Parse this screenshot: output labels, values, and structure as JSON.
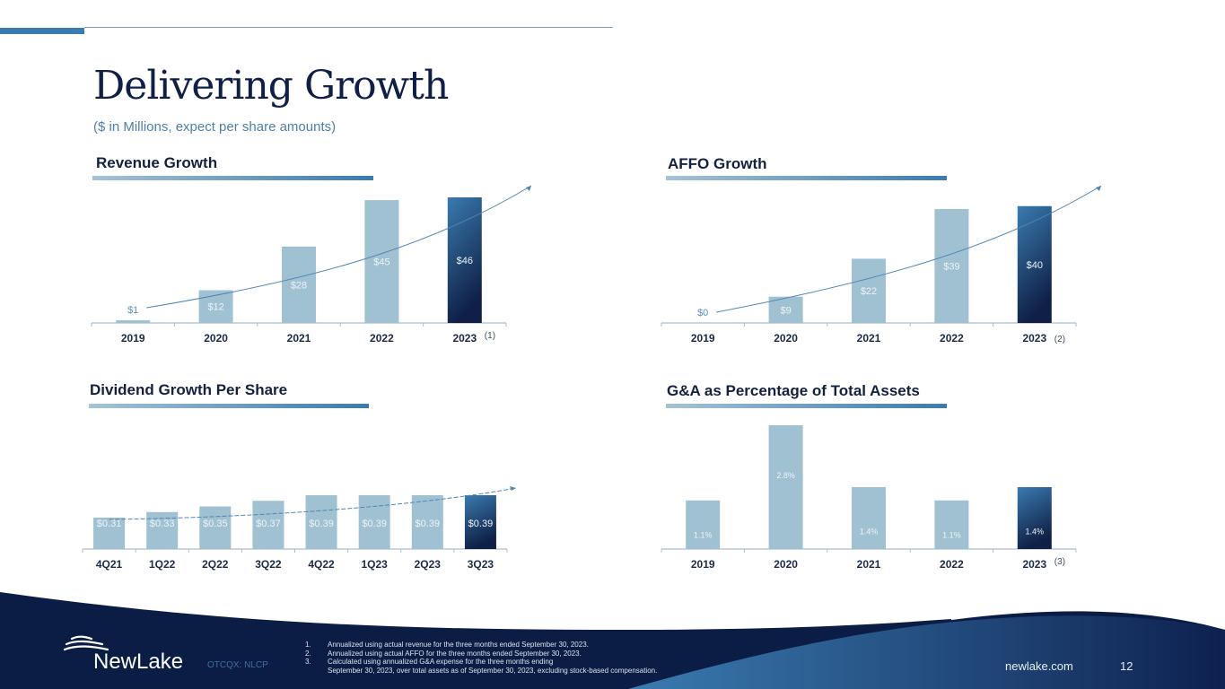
{
  "header": {
    "title": "Delivering Growth",
    "subtitle": "($ in Millions, expect per share amounts)"
  },
  "colors": {
    "bar_light": "#a0c1d2",
    "bar_dark_top": "#3a7bb0",
    "bar_dark_bottom": "#0f1f45",
    "axis": "#a9bfd0",
    "trend": "#4f86b5",
    "navy": "#0c1d45"
  },
  "chart_data": [
    {
      "id": "revenue",
      "type": "bar",
      "title": "Revenue Growth",
      "categories": [
        "2019",
        "2020",
        "2021",
        "2022",
        "2023"
      ],
      "category_note": "(1)",
      "values": [
        1,
        12,
        28,
        45,
        46
      ],
      "labels": [
        "$1",
        "$12",
        "$28",
        "$45",
        "$46"
      ],
      "ylim": [
        0,
        46
      ],
      "trend_arrow": true,
      "highlight_last": true
    },
    {
      "id": "affo",
      "type": "bar",
      "title": "AFFO Growth",
      "categories": [
        "2019",
        "2020",
        "2021",
        "2022",
        "2023"
      ],
      "category_note": "(2)",
      "values": [
        0,
        9,
        22,
        39,
        40
      ],
      "labels": [
        "$0",
        "$9",
        "$22",
        "$39",
        "$40"
      ],
      "ylim": [
        0,
        43
      ],
      "trend_arrow": true,
      "highlight_last": true
    },
    {
      "id": "dividend",
      "type": "bar",
      "title": "Dividend Growth Per Share",
      "categories": [
        "4Q21",
        "1Q22",
        "2Q22",
        "3Q22",
        "4Q22",
        "1Q23",
        "2Q23",
        "3Q23"
      ],
      "category_note": "",
      "values": [
        0.31,
        0.33,
        0.35,
        0.37,
        0.39,
        0.39,
        0.39,
        0.39
      ],
      "labels": [
        "$0.31",
        "$0.33",
        "$0.35",
        "$0.37",
        "$0.39",
        "$0.39",
        "$0.39",
        "$0.39"
      ],
      "ylim": [
        0,
        0.39
      ],
      "trend_arrow": true,
      "highlight_last": true
    },
    {
      "id": "gna",
      "type": "bar",
      "title": "G&A as Percentage of Total Assets",
      "categories": [
        "2019",
        "2020",
        "2021",
        "2022",
        "2023"
      ],
      "category_note": "(3)",
      "values": [
        1.1,
        2.8,
        1.4,
        1.1,
        1.4
      ],
      "labels": [
        "1.1%",
        "2.8%",
        "1.4%",
        "1.1%",
        "1.4%"
      ],
      "ylim": [
        0,
        2.8
      ],
      "trend_arrow": false,
      "highlight_last": true
    }
  ],
  "footer": {
    "logo": "NewLake",
    "ticker": "OTCQX: NLCP",
    "footnotes": [
      {
        "num": "1.",
        "text": "Annualized using actual revenue for the three months ended September 30, 2023."
      },
      {
        "num": "2.",
        "text": "Annualized using actual AFFO for the three months ended September 30, 2023."
      },
      {
        "num": "3.",
        "text": "Calculated using annualized G&A expense for the three months ending"
      },
      {
        "num": "",
        "text": "September 30, 2023, over total assets as of September 30, 2023, excluding stock-based compensation."
      }
    ],
    "website": "newlake.com",
    "page_number": "12"
  }
}
